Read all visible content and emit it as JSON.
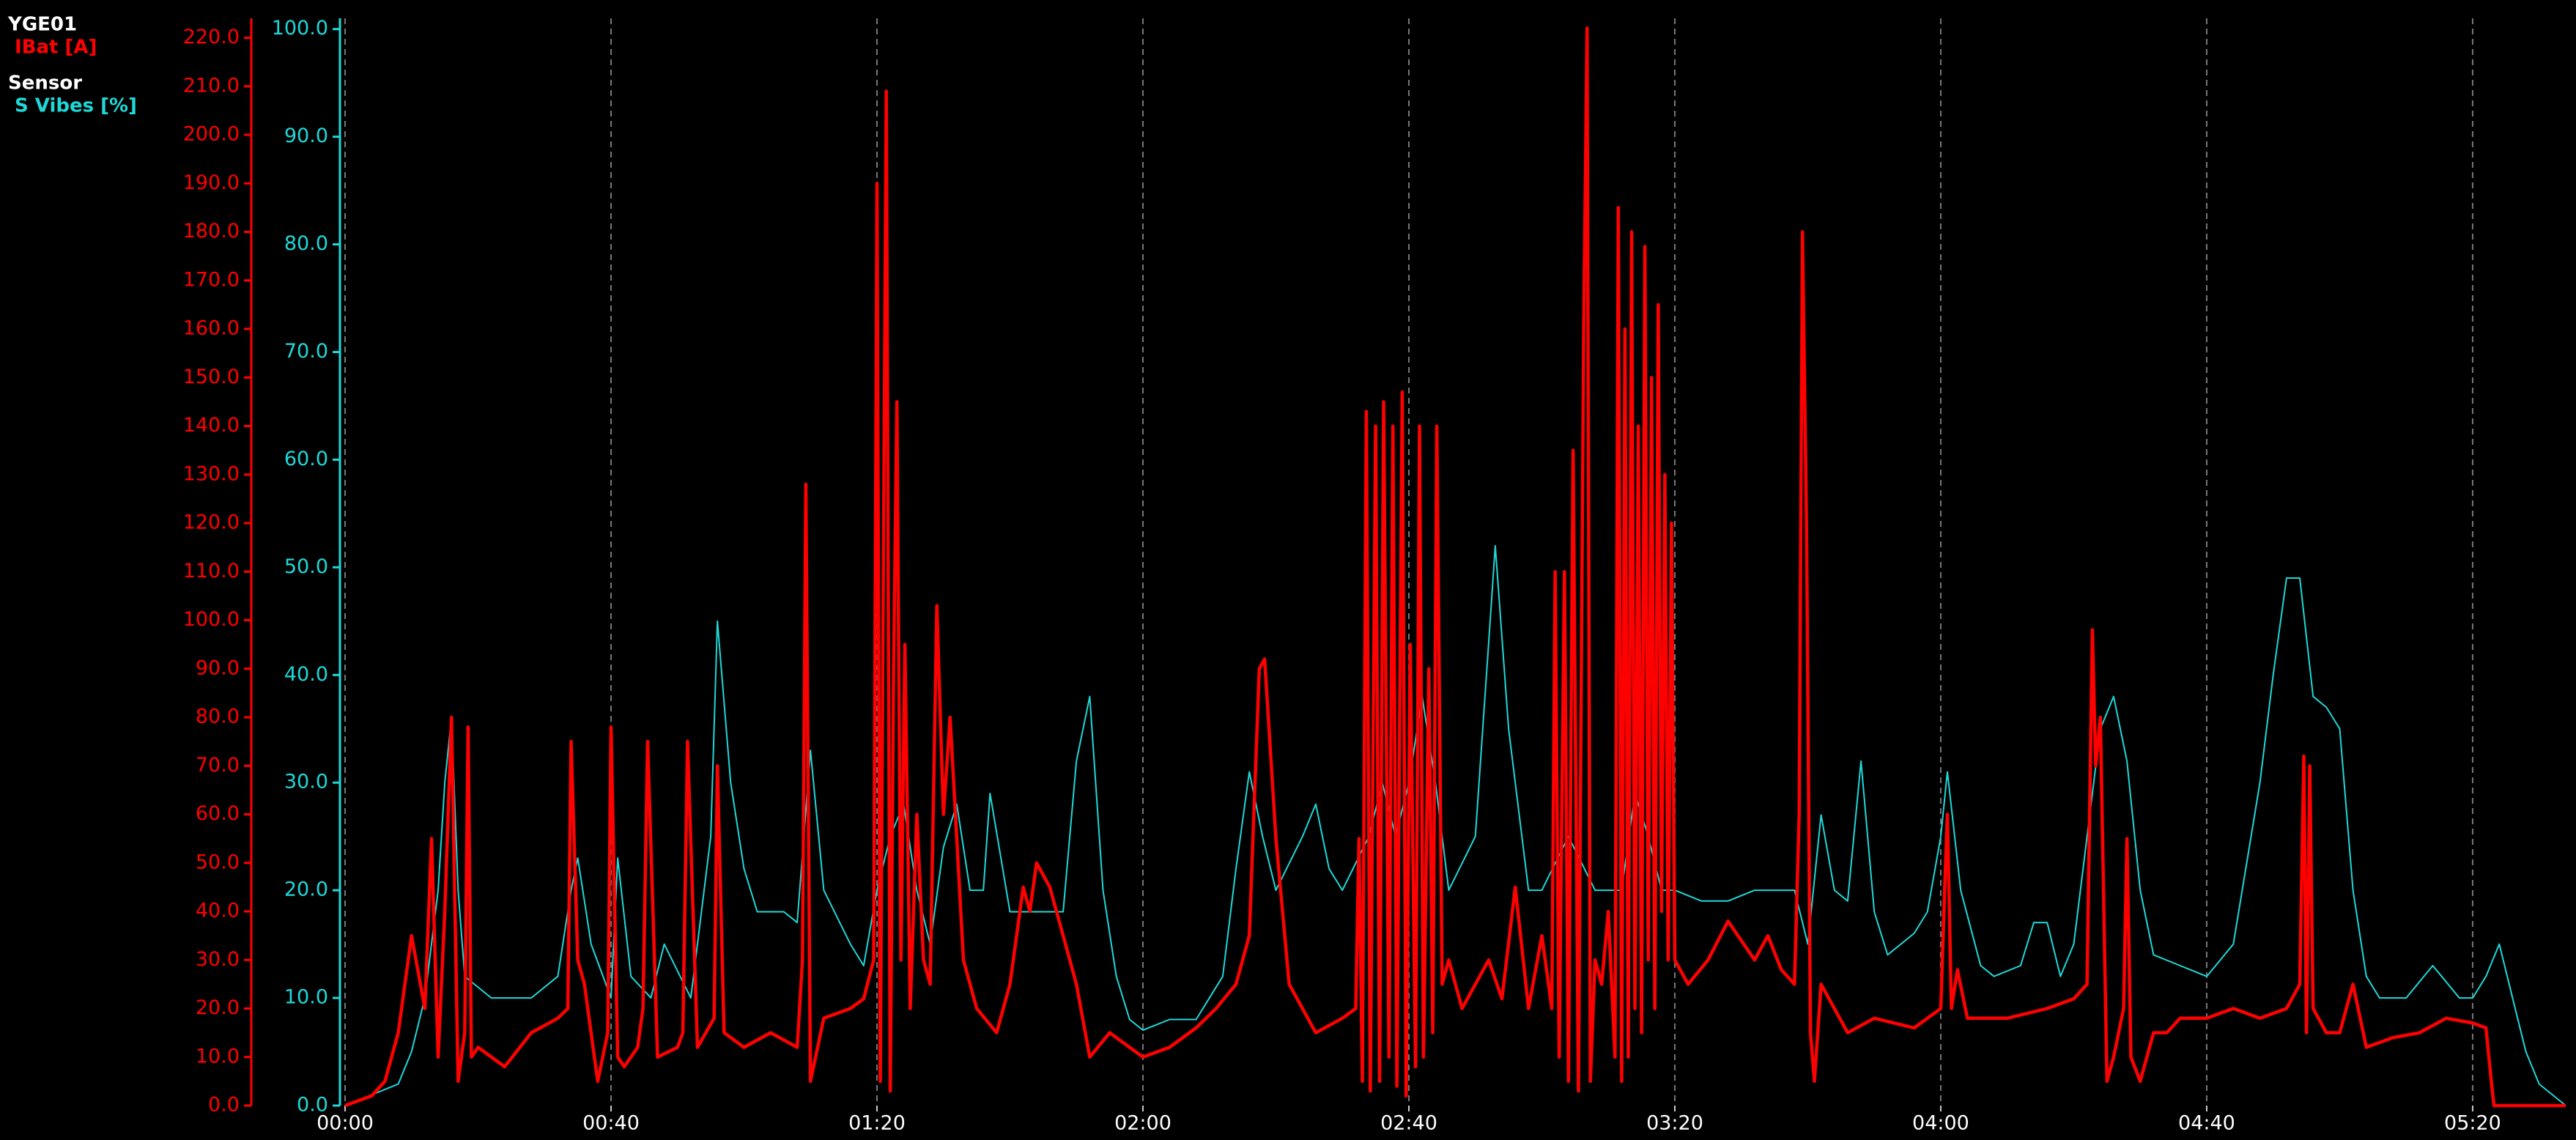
{
  "chart_data": {
    "type": "line",
    "grid": true,
    "xlim": [
      0,
      334
    ],
    "xticks": [
      {
        "value": 0,
        "label": "00:00"
      },
      {
        "value": 40,
        "label": "00:40"
      },
      {
        "value": 80,
        "label": "01:20"
      },
      {
        "value": 120,
        "label": "02:00"
      },
      {
        "value": 160,
        "label": "02:40"
      },
      {
        "value": 200,
        "label": "03:20"
      },
      {
        "value": 240,
        "label": "04:00"
      },
      {
        "value": 280,
        "label": "04:40"
      },
      {
        "value": 320,
        "label": "05:20"
      }
    ],
    "ylim": [
      0,
      224
    ],
    "yticks": [
      {
        "value": 0,
        "label": "0.0"
      },
      {
        "value": 10,
        "label": "10.0"
      },
      {
        "value": 20,
        "label": "20.0"
      },
      {
        "value": 30,
        "label": "30.0"
      },
      {
        "value": 40,
        "label": "40.0"
      },
      {
        "value": 50,
        "label": "50.0"
      },
      {
        "value": 60,
        "label": "60.0"
      },
      {
        "value": 70,
        "label": "70.0"
      },
      {
        "value": 80,
        "label": "80.0"
      },
      {
        "value": 90,
        "label": "90.0"
      },
      {
        "value": 100,
        "label": "100.0"
      },
      {
        "value": 110,
        "label": "110.0"
      },
      {
        "value": 120,
        "label": "120.0"
      },
      {
        "value": 130,
        "label": "130.0"
      },
      {
        "value": 140,
        "label": "140.0"
      },
      {
        "value": 150,
        "label": "150.0"
      },
      {
        "value": 160,
        "label": "160.0"
      },
      {
        "value": 170,
        "label": "170.0"
      },
      {
        "value": 180,
        "label": "180.0"
      },
      {
        "value": 190,
        "label": "190.0"
      },
      {
        "value": 200,
        "label": "200.0"
      },
      {
        "value": 210,
        "label": "210.0"
      },
      {
        "value": 220,
        "label": "220.0"
      }
    ],
    "y2lim": [
      0,
      101
    ],
    "y2ticks": [
      {
        "value": 0,
        "label": "0.0"
      },
      {
        "value": 10,
        "label": "10.0"
      },
      {
        "value": 20,
        "label": "20.0"
      },
      {
        "value": 30,
        "label": "30.0"
      },
      {
        "value": 40,
        "label": "40.0"
      },
      {
        "value": 50,
        "label": "50.0"
      },
      {
        "value": 60,
        "label": "60.0"
      },
      {
        "value": 70,
        "label": "70.0"
      },
      {
        "value": 80,
        "label": "80.0"
      },
      {
        "value": 90,
        "label": "90.0"
      },
      {
        "value": 100,
        "label": "100.0"
      }
    ],
    "series": [
      {
        "group": "YGE01",
        "name": "IBat [A]",
        "color": "#ff0000",
        "x": [
          0,
          4,
          6,
          8,
          10,
          12,
          13,
          14,
          15,
          16,
          17,
          18,
          18.5,
          19,
          20,
          24,
          28,
          32,
          33.5,
          34,
          35,
          36,
          38,
          39.5,
          40,
          41,
          42,
          44,
          44.8,
          45.5,
          47,
          50,
          50.8,
          51.5,
          53,
          55.5,
          56,
          57,
          60,
          64,
          68,
          68.8,
          69.3,
          70,
          72,
          76,
          78,
          79.5,
          80,
          80.5,
          81,
          81.4,
          82,
          82.5,
          83,
          83.6,
          84.2,
          85,
          86,
          87,
          88,
          89,
          90,
          91,
          93,
          95,
          98,
          100,
          102,
          103,
          104,
          106,
          108,
          110,
          112,
          115,
          118,
          120,
          124,
          128,
          131,
          134,
          136,
          137.5,
          138.3,
          140,
          142,
          146,
          150,
          152,
          152.5,
          153,
          153.6,
          154.2,
          155,
          155.6,
          156.2,
          157,
          157.6,
          158.2,
          159,
          159.6,
          160.2,
          161,
          161.6,
          162.2,
          163,
          163.6,
          164.2,
          165,
          166,
          168,
          170,
          172,
          174,
          176,
          178,
          180,
          181.5,
          182,
          182.6,
          183.4,
          184,
          184.7,
          185.5,
          186.3,
          186.8,
          187.3,
          188,
          189,
          190,
          191,
          191.5,
          192,
          192.5,
          193,
          193.5,
          194,
          194.5,
          195,
          195.5,
          196,
          196.5,
          197,
          197.5,
          198,
          198.5,
          199,
          199.5,
          200,
          202,
          205,
          208,
          212,
          214,
          216,
          218,
          218.7,
          219.2,
          219.8,
          220.4,
          221,
          222,
          226,
          230,
          236,
          240,
          240.6,
          241,
          241.6,
          242.5,
          244,
          250,
          256,
          260,
          262,
          262.8,
          263.3,
          264,
          265,
          266,
          267.5,
          268,
          268.6,
          270,
          272,
          274,
          276,
          280,
          284,
          288,
          292,
          294,
          294.6,
          295,
          295.5,
          296,
          298,
          300,
          302,
          304,
          308,
          312,
          316,
          320,
          322,
          322.8,
          323.2,
          334
        ],
        "values": [
          0,
          2,
          5,
          15,
          35,
          20,
          55,
          10,
          40,
          80,
          5,
          15,
          78,
          10,
          12,
          8,
          15,
          18,
          20,
          75,
          30,
          25,
          5,
          15,
          78,
          10,
          8,
          12,
          20,
          75,
          10,
          12,
          15,
          75,
          12,
          18,
          70,
          15,
          12,
          15,
          12,
          30,
          128,
          5,
          18,
          20,
          22,
          30,
          190,
          5,
          120,
          209,
          3,
          90,
          145,
          30,
          95,
          20,
          60,
          30,
          25,
          103,
          60,
          80,
          30,
          20,
          15,
          25,
          45,
          40,
          50,
          45,
          35,
          25,
          10,
          15,
          12,
          10,
          12,
          16,
          20,
          25,
          35,
          90,
          92,
          55,
          25,
          15,
          18,
          20,
          55,
          5,
          143,
          3,
          140,
          5,
          145,
          10,
          140,
          4,
          147,
          2,
          95,
          8,
          140,
          10,
          90,
          15,
          140,
          25,
          30,
          20,
          25,
          30,
          22,
          45,
          20,
          35,
          20,
          110,
          10,
          110,
          5,
          135,
          3,
          160,
          222,
          5,
          30,
          25,
          40,
          10,
          185,
          5,
          160,
          10,
          180,
          20,
          140,
          15,
          177,
          30,
          150,
          20,
          165,
          40,
          130,
          30,
          120,
          30,
          25,
          30,
          38,
          30,
          35,
          28,
          25,
          60,
          180,
          120,
          15,
          5,
          25,
          15,
          18,
          16,
          20,
          45,
          60,
          20,
          28,
          18,
          18,
          20,
          22,
          25,
          98,
          70,
          80,
          5,
          10,
          20,
          55,
          10,
          5,
          15,
          15,
          18,
          18,
          20,
          18,
          20,
          25,
          72,
          15,
          70,
          20,
          15,
          15,
          25,
          12,
          14,
          15,
          18,
          17,
          16,
          5,
          0,
          0
        ]
      },
      {
        "group": "Sensor",
        "name": "S Vibes [%]",
        "color": "#1fd8d8",
        "axis": "y2",
        "x": [
          0,
          8,
          10,
          12,
          14,
          15,
          16,
          17,
          18,
          22,
          28,
          32,
          34,
          35,
          37,
          40,
          41,
          43,
          46,
          48,
          52,
          55,
          56,
          58,
          60,
          62,
          66,
          68,
          69,
          70,
          72,
          76,
          78,
          80,
          82,
          84,
          86,
          88,
          90,
          92,
          94,
          96,
          97,
          100,
          104,
          108,
          110,
          112,
          114,
          116,
          118,
          120,
          124,
          128,
          132,
          134,
          136,
          138,
          140,
          144,
          146,
          148,
          150,
          154,
          156,
          158,
          160,
          162,
          164,
          166,
          170,
          172,
          173,
          175,
          178,
          180,
          184,
          188,
          192,
          194,
          196,
          198,
          200,
          204,
          208,
          212,
          216,
          218,
          220,
          222,
          224,
          226,
          228,
          230,
          232,
          236,
          238,
          240,
          241,
          243,
          246,
          248,
          252,
          254,
          256,
          258,
          260,
          264,
          266,
          268,
          270,
          272,
          276,
          280,
          284,
          288,
          290,
          292,
          294,
          296,
          298,
          300,
          302,
          304,
          306,
          310,
          314,
          318,
          320,
          322,
          324,
          326,
          328,
          330,
          334
        ],
        "values": [
          0,
          2,
          5,
          10,
          20,
          30,
          36,
          20,
          12,
          10,
          10,
          12,
          20,
          23,
          15,
          10,
          23,
          12,
          10,
          15,
          10,
          25,
          45,
          30,
          22,
          18,
          18,
          17,
          25,
          33,
          20,
          15,
          13,
          20,
          25,
          28,
          20,
          15,
          24,
          28,
          20,
          20,
          29,
          18,
          18,
          18,
          32,
          38,
          20,
          12,
          8,
          7,
          8,
          8,
          12,
          22,
          31,
          25,
          20,
          25,
          28,
          22,
          20,
          25,
          30,
          25,
          30,
          38,
          30,
          20,
          25,
          43,
          52,
          35,
          20,
          20,
          25,
          20,
          20,
          29,
          25,
          20,
          20,
          19,
          19,
          20,
          20,
          20,
          15,
          27,
          20,
          19,
          32,
          18,
          14,
          16,
          18,
          25,
          31,
          20,
          13,
          12,
          13,
          17,
          17,
          12,
          15,
          35,
          38,
          32,
          20,
          14,
          13,
          12,
          15,
          30,
          40,
          49,
          49,
          38,
          37,
          35,
          20,
          12,
          10,
          10,
          13,
          10,
          10,
          12,
          15,
          10,
          5,
          2,
          0
        ]
      }
    ]
  }
}
